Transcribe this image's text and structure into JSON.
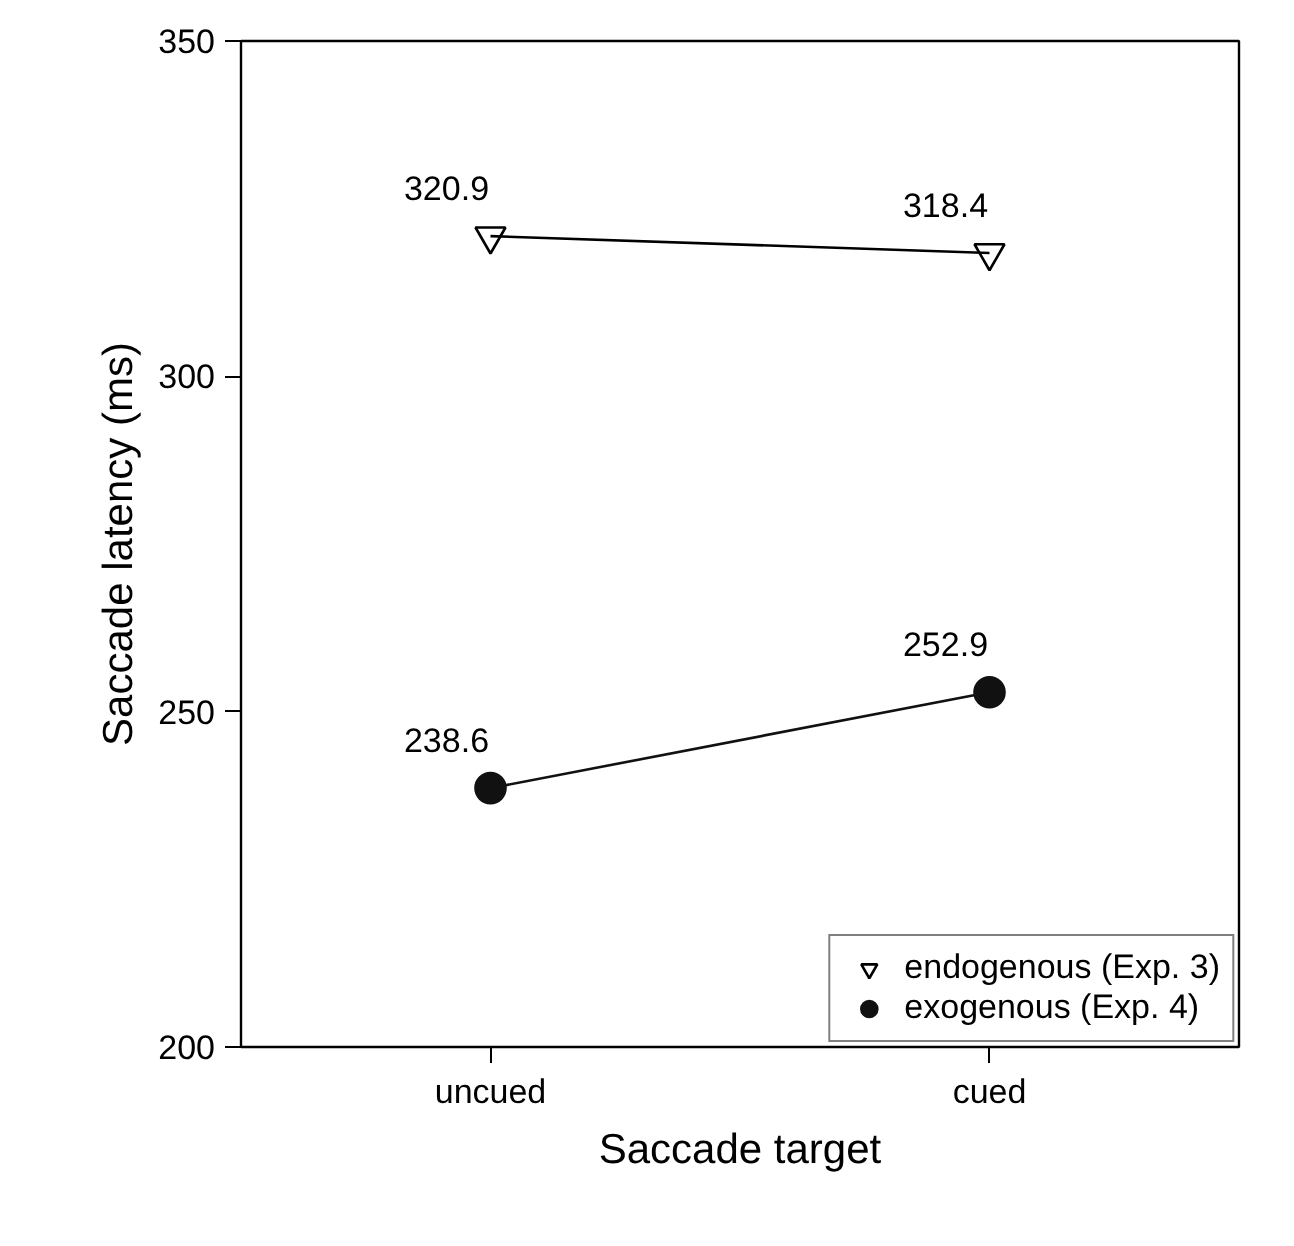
{
  "chart_data": {
    "type": "line",
    "xlabel": "Saccade target",
    "ylabel": "Saccade latency (ms)",
    "categories": [
      "uncued",
      "cued"
    ],
    "series": [
      {
        "name": "endogenous (Exp. 3)",
        "color": "#000000",
        "values": [
          320.9,
          318.4
        ],
        "marker": "triangle"
      },
      {
        "name": "exogenous (Exp. 4)",
        "color": "#111111",
        "values": [
          238.6,
          252.9
        ],
        "marker": "circle"
      }
    ],
    "ylim": [
      200,
      350
    ],
    "yticks": [
      200,
      250,
      300,
      350
    ],
    "data_labels": true,
    "legend": "bottom right",
    "grid": false,
    "line_style": "solid"
  }
}
